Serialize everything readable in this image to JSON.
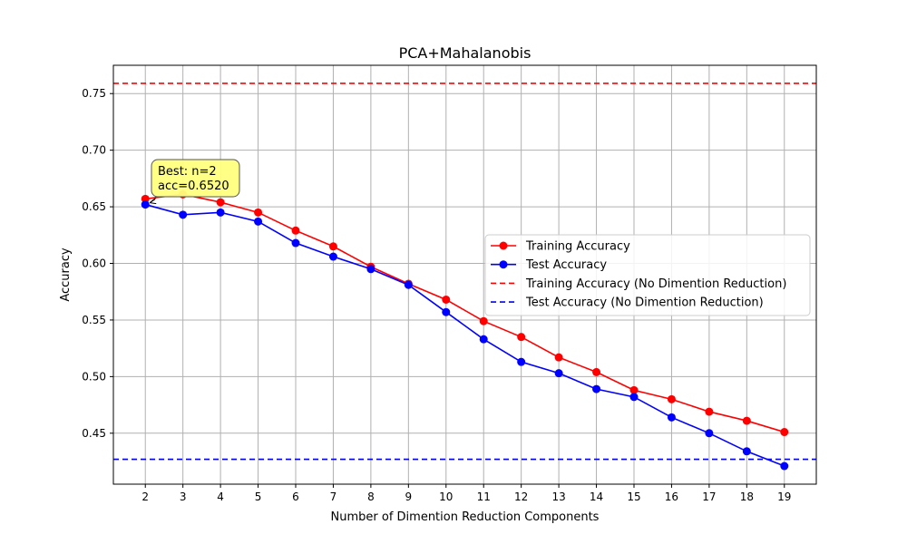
{
  "chart_data": {
    "type": "line",
    "title": "PCA+Mahalanobis",
    "xlabel": "Number of Dimention Reduction Components",
    "ylabel": "Accuracy",
    "xlim": [
      1.15,
      19.85
    ],
    "ylim": [
      0.405,
      0.775
    ],
    "x": [
      2,
      3,
      4,
      5,
      6,
      7,
      8,
      9,
      10,
      11,
      12,
      13,
      14,
      15,
      16,
      17,
      18,
      19
    ],
    "xticks": [
      "2",
      "3",
      "4",
      "5",
      "6",
      "7",
      "8",
      "9",
      "10",
      "11",
      "12",
      "13",
      "14",
      "15",
      "16",
      "17",
      "18",
      "19"
    ],
    "yticks": [
      0.45,
      0.5,
      0.55,
      0.6,
      0.65,
      0.7,
      0.75
    ],
    "ytick_labels": [
      "0.45",
      "0.50",
      "0.55",
      "0.60",
      "0.65",
      "0.70",
      "0.75"
    ],
    "grid": true,
    "legend_position": "center-right",
    "series": [
      {
        "name": "Training Accuracy",
        "color": "#ff0000",
        "style": "solid-marker",
        "values": [
          0.657,
          0.661,
          0.654,
          0.645,
          0.629,
          0.615,
          0.597,
          0.582,
          0.568,
          0.549,
          0.535,
          0.517,
          0.504,
          0.488,
          0.48,
          0.469,
          0.461,
          0.451
        ]
      },
      {
        "name": "Test Accuracy",
        "color": "#0000ff",
        "style": "solid-marker",
        "values": [
          0.652,
          0.643,
          0.645,
          0.637,
          0.618,
          0.606,
          0.595,
          0.581,
          0.557,
          0.533,
          0.513,
          0.503,
          0.489,
          0.482,
          0.464,
          0.45,
          0.434,
          0.421
        ]
      }
    ],
    "reference_lines": [
      {
        "name": "Training Accuracy (No Dimention Reduction)",
        "color": "#ff0000",
        "style": "dashed",
        "value": 0.759
      },
      {
        "name": "Test Accuracy (No Dimention Reduction)",
        "color": "#0000ff",
        "style": "dashed",
        "value": 0.427
      }
    ],
    "annotation": {
      "line1": "Best: n=2",
      "line2": "acc=0.6520",
      "target_x": 2,
      "target_y": 0.652,
      "box_color": "#ffff80"
    }
  }
}
